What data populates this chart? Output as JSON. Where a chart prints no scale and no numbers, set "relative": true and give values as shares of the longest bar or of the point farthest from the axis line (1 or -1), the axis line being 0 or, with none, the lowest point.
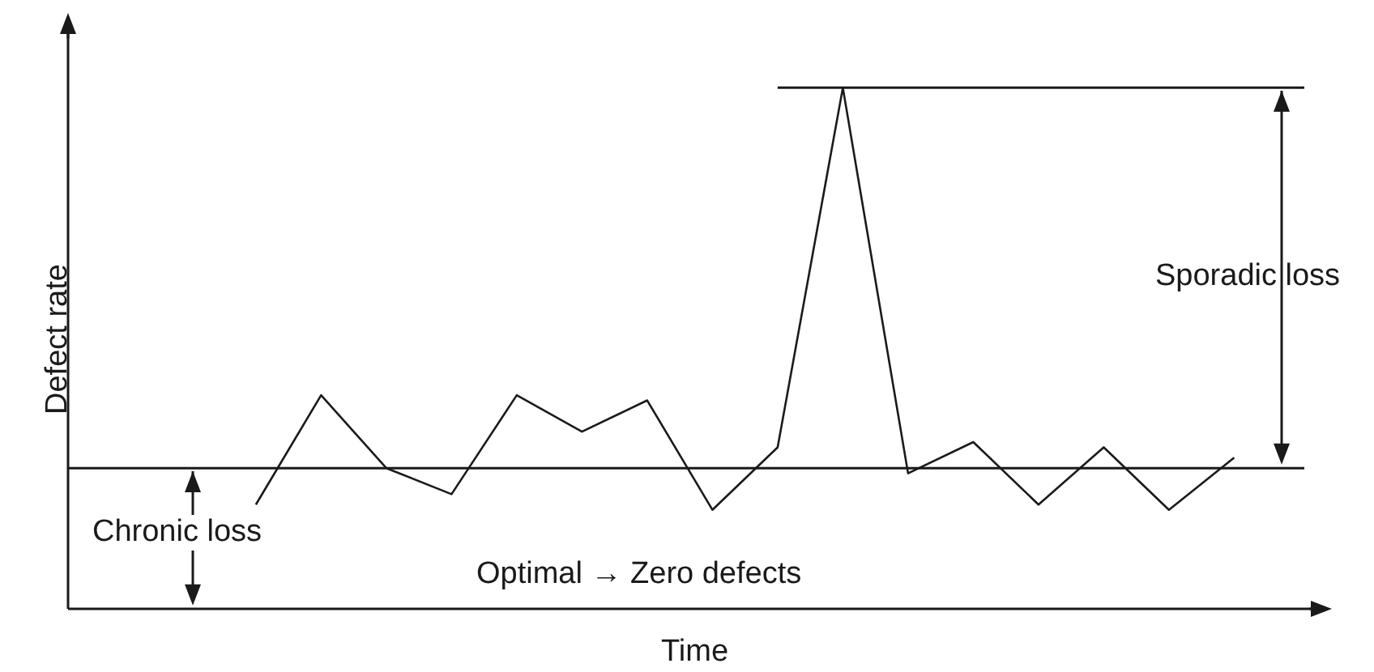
{
  "chart_data": {
    "type": "line",
    "relative": true,
    "xlabel": "Time",
    "ylabel": "Defect rate",
    "categories": [
      null,
      null,
      null,
      null,
      null,
      null,
      null,
      null,
      null,
      null,
      null,
      null,
      null,
      null,
      null,
      null
    ],
    "series": [
      {
        "color": "#1a1a1a",
        "values": [
          0.2,
          0.41,
          0.27,
          0.22,
          0.41,
          0.34,
          0.4,
          0.19,
          0.31,
          1,
          0.26,
          0.32,
          0.2,
          0.31,
          0.19,
          0.29
        ]
      }
    ],
    "ref_lines": [
      {
        "axis": "y",
        "value": 0.27,
        "color": "#1a1a1a"
      },
      {
        "axis": "y",
        "value": 1,
        "color": "#1a1a1a"
      }
    ],
    "annotations": [
      "Sporadic loss",
      "Chronic loss",
      "Optimal → Zero defects"
    ],
    "grid": false,
    "legend": false,
    "marker": "none",
    "line_style": "solid"
  }
}
